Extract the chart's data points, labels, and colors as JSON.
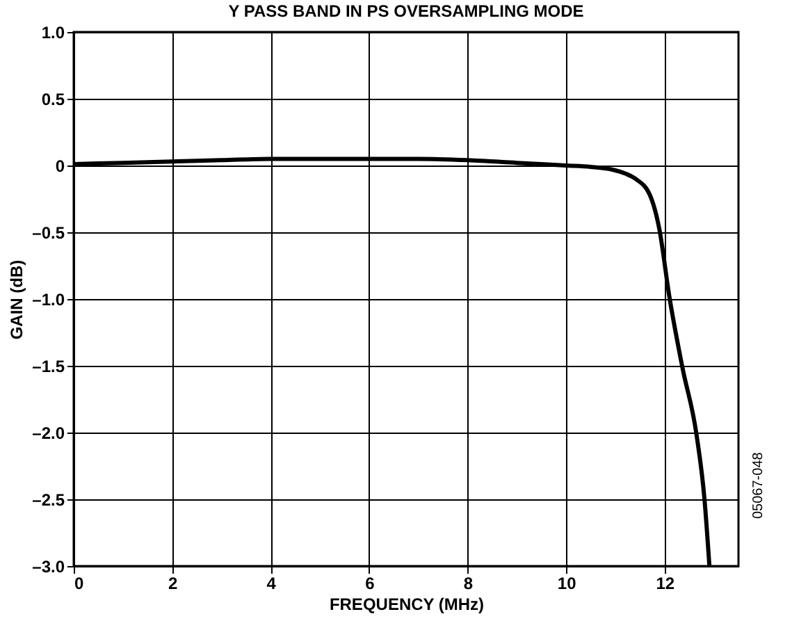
{
  "chart_data": {
    "type": "line",
    "title": "Y PASS BAND IN PS OVERSAMPLING MODE",
    "xlabel": "FREQUENCY (MHz)",
    "ylabel": "GAIN (dB)",
    "x": [
      0,
      1,
      2,
      3,
      4,
      5,
      6,
      7,
      8,
      9,
      10,
      10.5,
      10.93,
      11.2,
      11.41,
      11.7,
      11.89,
      12.1,
      12.36,
      12.65,
      12.81,
      12.91
    ],
    "series": [
      {
        "color": "#000000",
        "values": [
          0.01,
          0.02,
          0.03,
          0.04,
          0.05,
          0.05,
          0.05,
          0.05,
          0.04,
          0.02,
          0.0,
          -0.01,
          -0.03,
          -0.06,
          -0.1,
          -0.22,
          -0.47,
          -0.99,
          -1.51,
          -2.02,
          -2.5,
          -3.0
        ]
      }
    ],
    "xlim": [
      0,
      13.5
    ],
    "ylim": [
      -3.0,
      1.0
    ],
    "xticks": [
      0,
      2,
      4,
      6,
      8,
      10,
      12
    ],
    "yticks": [
      {
        "value": -3,
        "label": "–3.0"
      },
      {
        "value": -2.5,
        "label": "–2.5"
      },
      {
        "value": -2,
        "label": "–2.0"
      },
      {
        "value": -1.5,
        "label": "–1.5"
      },
      {
        "value": -1,
        "label": "–1.0"
      },
      {
        "value": -0.5,
        "label": "–0.5"
      },
      {
        "value": 0,
        "label": "0"
      },
      {
        "value": 0.5,
        "label": "0.5"
      },
      {
        "value": 1,
        "label": "1.0"
      }
    ],
    "grid": true,
    "marker": "none",
    "line_style": "solid",
    "annotations": [
      "05067-048"
    ]
  }
}
